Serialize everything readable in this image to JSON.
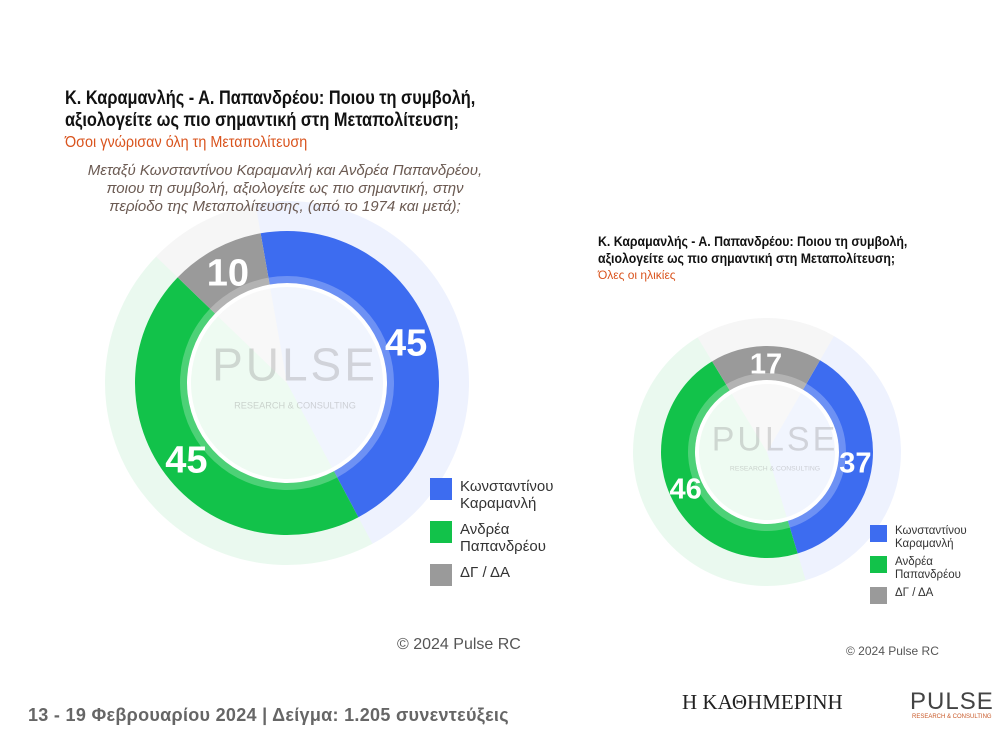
{
  "chart_data": [
    {
      "type": "pie",
      "title": "Κ. Καραμανλής - Α. Παπανδρέου: Ποιου τη συμβολή, αξιολογείτε ως πιο σημαντική στη Μεταπολίτευση;",
      "subtitle": "Όσοι γνώρισαν όλη τη Μεταπολίτευση",
      "question": "Μεταξύ Κωνσταντίνου Καραμανλή και Ανδρέα Παπανδρέου, ποιου τη συμβολή, αξιολογείτε ως πιο σημαντική, στην περίοδο της Μεταπολίτευσης, (από το 1974 και μετά);",
      "categories": [
        "Κωνσταντίνου Καραμανλή",
        "Ανδρέα Παπανδρέου",
        "ΔΓ / ΔΑ"
      ],
      "values": [
        45,
        45,
        10
      ],
      "colors": [
        "#3d6cf0",
        "#12c24a",
        "#9a9a9a"
      ],
      "copyright": "© 2024 Pulse RC"
    },
    {
      "type": "pie",
      "title": "Κ. Καραμανλής - Α. Παπανδρέου: Ποιου τη συμβολή, αξιολογείτε ως πιο σημαντική στη Μεταπολίτευση;",
      "subtitle": "Όλες οι ηλικίες",
      "categories": [
        "Κωνσταντίνου Καραμανλή",
        "Ανδρέα Παπανδρέου",
        "ΔΓ / ΔΑ"
      ],
      "values": [
        37,
        46,
        17
      ],
      "colors": [
        "#3d6cf0",
        "#12c24a",
        "#9a9a9a"
      ],
      "copyright": "© 2024 Pulse RC"
    }
  ],
  "watermark": {
    "name": "PULSE",
    "sub": "RESEARCH & CONSULTING"
  },
  "footer": "13 - 19  Φεβρουαρίου  2024  |  Δείγμα:  1.205 συνεντεύξεις",
  "logos": {
    "newspaper": "Η ΚΑΘΗΜΕΡΙΝΗ",
    "pulse": "PULSE",
    "pulse_sub": "RESEARCH & CONSULTING"
  }
}
